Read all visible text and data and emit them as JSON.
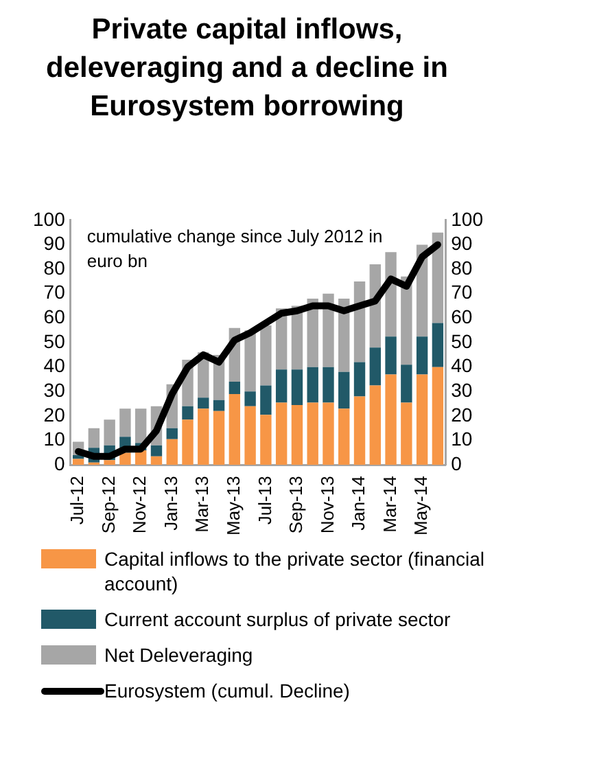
{
  "chart_data": {
    "type": "bar",
    "stacked": true,
    "title": "Private capital inflows, deleveraging and a decline in Eurosystem borrowing",
    "categories": [
      "Jul-12",
      null,
      "Sep-12",
      null,
      "Nov-12",
      null,
      "Jan-13",
      null,
      "Mar-13",
      null,
      "May-13",
      null,
      "Jul-13",
      null,
      "Sep-13",
      null,
      "Nov-13",
      null,
      "Jan-14",
      null,
      "Mar-14",
      null,
      "May-14",
      null
    ],
    "series": [
      {
        "name": "Capital  inflows to the private sector (financial account)",
        "color": "#f79646",
        "values": [
          2.5,
          1,
          2,
          5,
          6,
          3.5,
          10.5,
          18.5,
          23,
          22,
          29,
          24,
          20.5,
          25.5,
          24.5,
          25.5,
          25.5,
          23,
          28,
          32.5,
          37,
          25.5,
          37,
          40
        ]
      },
      {
        "name": "Current account surplus of private sector",
        "color": "#215968",
        "values": [
          1.5,
          6,
          6,
          6.5,
          3,
          4.5,
          4.5,
          5.5,
          4.5,
          4.5,
          5,
          6,
          12,
          13.5,
          14.5,
          14.5,
          14.5,
          15,
          14,
          15.5,
          15.5,
          15.5,
          15.5,
          18
        ]
      },
      {
        "name": "Net Deleveraging",
        "color": "#a6a6a6",
        "values": [
          5.5,
          8,
          10.5,
          11.5,
          14,
          16,
          18,
          19,
          18.5,
          18.5,
          22,
          25,
          24.5,
          25,
          26,
          28,
          30,
          30,
          33,
          34,
          34.5,
          36,
          37.5,
          37
        ]
      },
      {
        "name": "Eurosystem (cumul. Decline)",
        "type": "line",
        "color": "#000000",
        "values": [
          5.5,
          3.5,
          3.5,
          6.5,
          6.5,
          14,
          29,
          40,
          45,
          42,
          51,
          54,
          58,
          62,
          63,
          65,
          65,
          63,
          65,
          67,
          76,
          73,
          85,
          90
        ]
      }
    ],
    "ylim": [
      0,
      100
    ],
    "yticks": [
      0,
      10,
      20,
      30,
      40,
      50,
      60,
      70,
      80,
      90,
      100
    ],
    "y2lim": [
      0,
      100
    ],
    "y2ticks": [
      0,
      10,
      20,
      30,
      40,
      50,
      60,
      70,
      80,
      90,
      100
    ],
    "annotations": [
      "cumulative change since July 2012 in euro bn"
    ],
    "grid": false,
    "legend": "bottom",
    "marker": "none",
    "line_style": "solid"
  }
}
